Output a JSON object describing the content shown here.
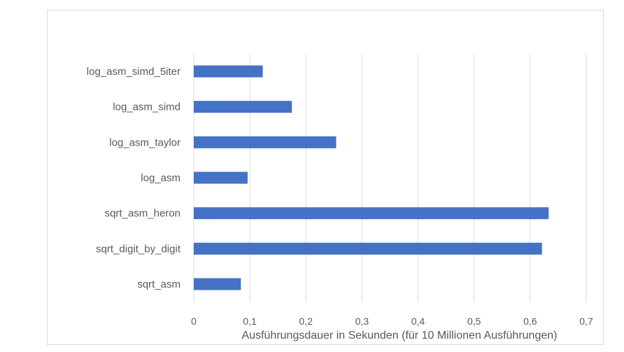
{
  "chart_data": {
    "type": "bar",
    "orientation": "horizontal",
    "categories": [
      "log_asm_simd_5iter",
      "log_asm_simd",
      "log_asm_taylor",
      "log_asm",
      "sqrt_asm_heron",
      "sqrt_digit_by_digit",
      "sqrt_asm"
    ],
    "values": [
      0.123,
      0.175,
      0.254,
      0.096,
      0.633,
      0.621,
      0.084
    ],
    "xlabel": "Ausführungsdauer in Sekunden (für 10 Millionen Ausführungen)",
    "xlim": [
      0,
      0.7
    ],
    "xticks": [
      "0",
      "0,1",
      "0,2",
      "0,3",
      "0,4",
      "0,5",
      "0,6",
      "0,7"
    ],
    "grid": "vertical",
    "bar_color": "#4472c4",
    "gridline_color": "#d9d9d9"
  }
}
